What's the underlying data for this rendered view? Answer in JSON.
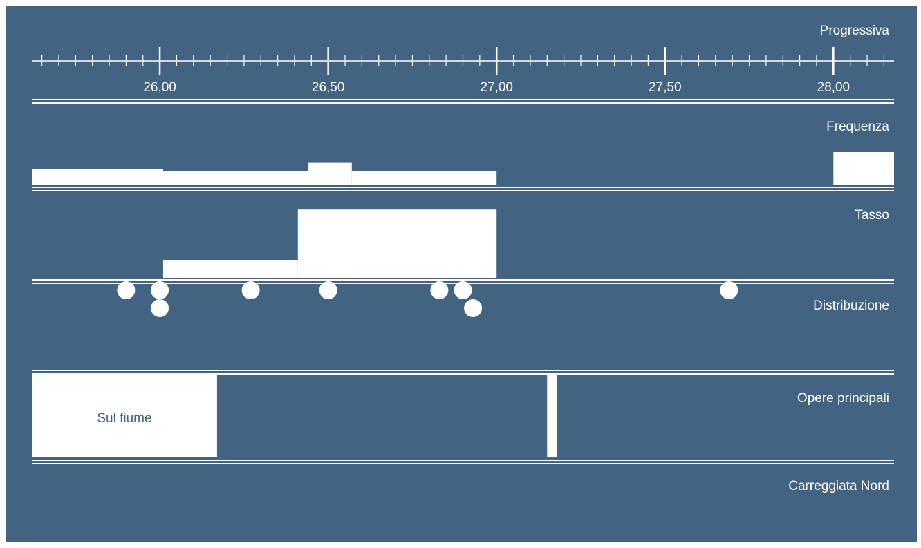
{
  "colors": {
    "background": "#436382",
    "foreground": "#ffffff",
    "page": "#ffffff"
  },
  "chart_data": {
    "type": "track-diagram",
    "x_unit": "km",
    "xlim": [
      25.62,
      28.18
    ],
    "ticks": {
      "major": [
        26.0,
        26.5,
        27.0,
        27.5,
        28.0
      ],
      "major_labels": [
        "26,00",
        "26,50",
        "27,00",
        "27,50",
        "28,00"
      ],
      "minor_step": 0.05
    },
    "tracks": [
      {
        "id": "progressiva",
        "label": "Progressiva"
      },
      {
        "id": "frequenza",
        "label": "Frequenza",
        "segments": [
          {
            "x0": 25.62,
            "x1": 26.01,
            "value": 1.0
          },
          {
            "x0": 26.01,
            "x1": 26.44,
            "value": 0.85
          },
          {
            "x0": 26.44,
            "x1": 26.57,
            "value": 1.35
          },
          {
            "x0": 26.57,
            "x1": 27.0,
            "value": 0.85
          },
          {
            "x0": 28.0,
            "x1": 28.18,
            "value": 2.0
          }
        ]
      },
      {
        "id": "tasso",
        "label": "Tasso",
        "segments": [
          {
            "x0": 26.01,
            "x1": 26.41,
            "value": 1.0
          },
          {
            "x0": 26.41,
            "x1": 27.0,
            "value": 3.8
          }
        ]
      },
      {
        "id": "distribuzione",
        "label": "Distribuzione",
        "points": [
          {
            "x": 25.9,
            "row": 0
          },
          {
            "x": 26.0,
            "row": 0
          },
          {
            "x": 26.0,
            "row": 1
          },
          {
            "x": 26.27,
            "row": 0
          },
          {
            "x": 26.5,
            "row": 0
          },
          {
            "x": 26.83,
            "row": 0
          },
          {
            "x": 26.9,
            "row": 0
          },
          {
            "x": 26.93,
            "row": 1
          },
          {
            "x": 27.69,
            "row": 0
          }
        ]
      },
      {
        "id": "opere",
        "label": "Opere principali",
        "blocks": [
          {
            "x0": 25.62,
            "x1": 26.17,
            "label": "Sul fiume"
          },
          {
            "x0": 27.15,
            "x1": 27.18,
            "label": ""
          }
        ]
      },
      {
        "id": "carreggiata",
        "label": "Carreggiata Nord"
      }
    ]
  }
}
